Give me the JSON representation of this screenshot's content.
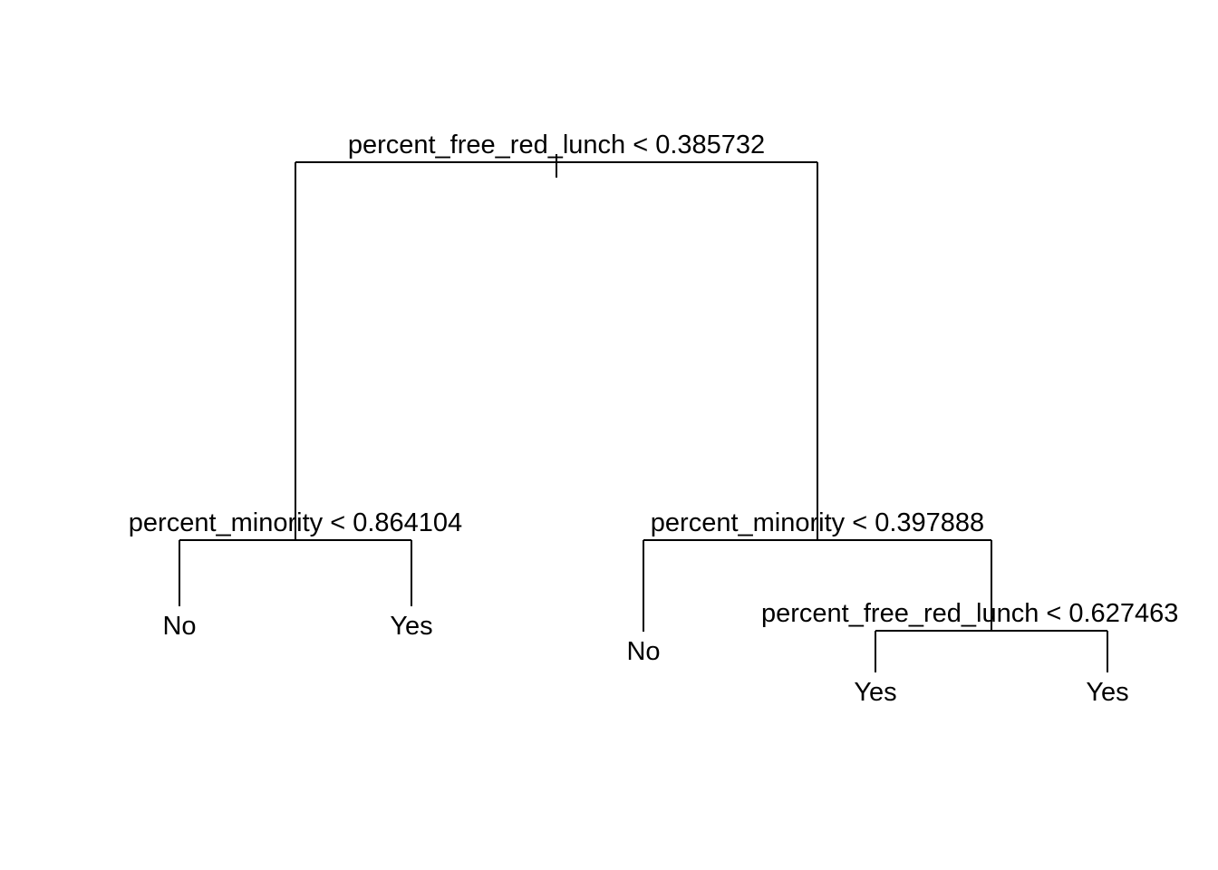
{
  "tree": {
    "root_split": "percent_free_red_lunch < 0.385732",
    "left_split": "percent_minority < 0.864104",
    "right_split": "percent_minority < 0.397888",
    "right_right_split": "percent_free_red_lunch < 0.627463",
    "leaves": {
      "left_left": "No",
      "left_right": "Yes",
      "right_left": "No",
      "right_right_left": "Yes",
      "right_right_right": "Yes"
    },
    "line_color": "#000000",
    "background_color": "#ffffff"
  }
}
